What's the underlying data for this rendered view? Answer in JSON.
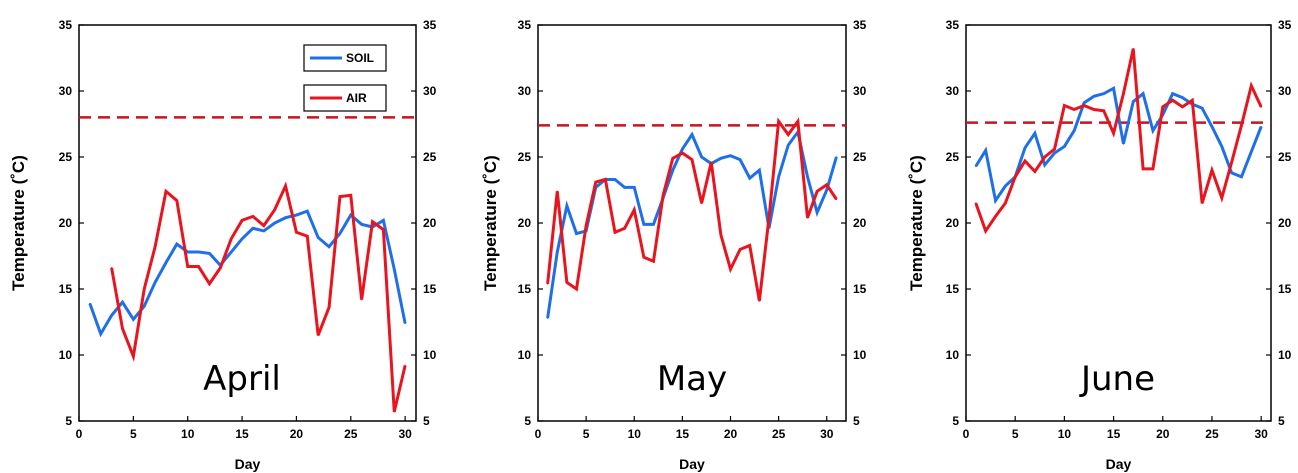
{
  "colors": {
    "soil": "#1f6fe8",
    "air": "#e8141e",
    "threshold": "#c8141e"
  },
  "chart_data": [
    {
      "type": "line",
      "month_label": "April",
      "xlabel": "Day",
      "ylabel": "Temperature (˚C)",
      "xlim": [
        0,
        31
      ],
      "ylim": [
        5,
        35
      ],
      "xticks": [
        "0",
        "5",
        "10",
        "15",
        "20",
        "25",
        "30"
      ],
      "yticks": [
        "5",
        "10",
        "15",
        "20",
        "25",
        "30",
        "35"
      ],
      "threshold": 28.0,
      "legend": {
        "placement": "top-right",
        "entries": [
          "SOIL",
          "AIR"
        ]
      },
      "series": [
        {
          "name": "SOIL",
          "x": [
            1,
            2,
            3,
            4,
            5,
            6,
            7,
            8,
            9,
            10,
            11,
            12,
            13,
            14,
            15,
            16,
            17,
            18,
            19,
            20,
            21,
            22,
            23,
            24,
            25,
            26,
            27,
            28,
            29,
            30
          ],
          "values": [
            13.9,
            11.6,
            13.0,
            14.0,
            12.7,
            13.7,
            15.5,
            17.0,
            18.4,
            17.8,
            17.8,
            17.7,
            16.8,
            17.8,
            18.8,
            19.6,
            19.4,
            20.0,
            20.4,
            20.6,
            20.9,
            18.9,
            18.2,
            19.2,
            20.6,
            19.9,
            19.7,
            20.2,
            16.5,
            12.4
          ]
        },
        {
          "name": "AIR",
          "x": [
            3,
            4,
            5,
            6,
            7,
            8,
            9,
            10,
            11,
            12,
            13,
            14,
            15,
            16,
            17,
            18,
            19,
            20,
            21,
            22,
            23,
            24,
            25,
            26,
            27,
            28,
            29,
            30
          ],
          "values": [
            16.6,
            12.0,
            9.9,
            15.0,
            18.2,
            22.4,
            21.7,
            16.7,
            16.7,
            15.4,
            16.6,
            18.8,
            20.2,
            20.5,
            19.8,
            21.0,
            22.8,
            19.3,
            19.0,
            11.5,
            13.6,
            22.0,
            22.1,
            14.2,
            20.1,
            19.5,
            5.7,
            9.2
          ]
        }
      ]
    },
    {
      "type": "line",
      "month_label": "May",
      "xlabel": "Day",
      "ylabel": "Temperature (˚C)",
      "xlim": [
        0,
        32
      ],
      "ylim": [
        5,
        35
      ],
      "xticks": [
        "0",
        "5",
        "10",
        "15",
        "20",
        "25",
        "30"
      ],
      "yticks": [
        "5",
        "10",
        "15",
        "20",
        "25",
        "30",
        "35"
      ],
      "threshold": 27.4,
      "series": [
        {
          "name": "SOIL",
          "x": [
            1,
            2,
            3,
            4,
            5,
            6,
            7,
            8,
            9,
            10,
            11,
            12,
            13,
            14,
            15,
            16,
            17,
            18,
            19,
            20,
            21,
            22,
            23,
            24,
            25,
            26,
            27,
            28,
            29,
            30,
            31
          ],
          "values": [
            12.8,
            17.8,
            21.3,
            19.2,
            19.4,
            22.7,
            23.3,
            23.3,
            22.7,
            22.7,
            19.9,
            19.9,
            21.9,
            24.0,
            25.6,
            26.7,
            25.0,
            24.5,
            24.9,
            25.1,
            24.8,
            23.4,
            24.0,
            19.6,
            23.5,
            25.9,
            26.9,
            23.5,
            20.8,
            22.5,
            25.0
          ]
        },
        {
          "name": "AIR",
          "x": [
            1,
            2,
            3,
            4,
            5,
            6,
            7,
            8,
            9,
            10,
            11,
            12,
            13,
            14,
            15,
            16,
            17,
            18,
            19,
            20,
            21,
            22,
            23,
            24,
            25,
            26,
            27,
            28,
            29,
            30,
            31
          ],
          "values": [
            15.4,
            22.4,
            15.5,
            15.0,
            19.8,
            23.1,
            23.3,
            19.3,
            19.6,
            21.0,
            17.4,
            17.1,
            22.1,
            24.9,
            25.3,
            24.8,
            21.5,
            24.6,
            19.1,
            16.5,
            18.0,
            18.3,
            14.1,
            20.4,
            27.7,
            26.7,
            27.7,
            20.4,
            22.4,
            22.9,
            21.8
          ]
        }
      ]
    },
    {
      "type": "line",
      "month_label": "June",
      "xlabel": "Day",
      "ylabel": "Temperature (˚C)",
      "xlim": [
        0,
        31
      ],
      "ylim": [
        5,
        35
      ],
      "xticks": [
        "0",
        "5",
        "10",
        "15",
        "20",
        "25",
        "30"
      ],
      "yticks": [
        "5",
        "10",
        "15",
        "20",
        "25",
        "30",
        "35"
      ],
      "threshold": 27.6,
      "series": [
        {
          "name": "SOIL",
          "x": [
            1,
            2,
            3,
            4,
            5,
            6,
            7,
            8,
            9,
            10,
            11,
            12,
            13,
            14,
            15,
            16,
            17,
            18,
            19,
            20,
            21,
            22,
            23,
            24,
            25,
            26,
            27,
            28,
            29,
            30
          ],
          "values": [
            24.3,
            25.5,
            21.7,
            22.8,
            23.5,
            25.7,
            26.8,
            24.4,
            25.3,
            25.8,
            27.0,
            29.1,
            29.6,
            29.8,
            30.2,
            26.0,
            29.2,
            29.8,
            27.0,
            28.2,
            29.8,
            29.5,
            29.0,
            28.7,
            27.3,
            25.8,
            23.8,
            23.5,
            25.4,
            27.3
          ]
        },
        {
          "name": "AIR",
          "x": [
            1,
            2,
            3,
            4,
            5,
            6,
            7,
            8,
            9,
            10,
            11,
            12,
            13,
            14,
            15,
            16,
            17,
            18,
            19,
            20,
            21,
            22,
            23,
            24,
            25,
            26,
            27,
            28,
            29,
            30
          ],
          "values": [
            21.5,
            19.4,
            20.5,
            21.5,
            23.5,
            24.7,
            23.9,
            25.0,
            25.6,
            28.9,
            28.6,
            28.9,
            28.6,
            28.5,
            26.8,
            29.8,
            33.2,
            24.1,
            24.1,
            28.8,
            29.3,
            28.8,
            29.3,
            21.5,
            24.0,
            21.9,
            24.6,
            27.4,
            30.4,
            28.8
          ]
        }
      ]
    }
  ]
}
